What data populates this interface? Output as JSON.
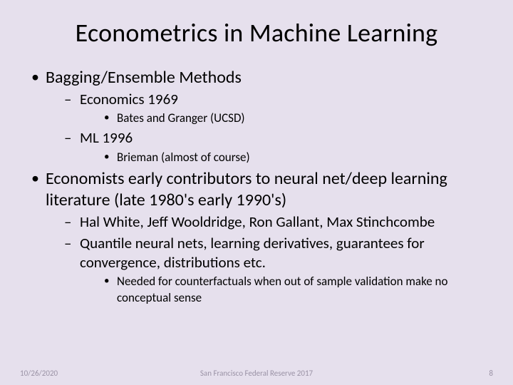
{
  "background_color": "#e6e0ed",
  "text_color": "#000000",
  "footer_color": "#9a92a5",
  "title": "Econometrics in Machine Learning",
  "title_fontsize": 36,
  "bullets": {
    "b1": "Bagging/Ensemble Methods",
    "b1_1": "Economics 1969",
    "b1_1_1": "Bates and Granger (UCSD)",
    "b1_2": "ML 1996",
    "b1_2_1": "Brieman (almost of course)",
    "b2": "Economists early contributors to neural net/deep learning literature (late 1980's early 1990's)",
    "b2_1": "Hal White, Jeff Wooldridge, Ron Gallant, Max Stinchcombe",
    "b2_2": "Quantile neural nets, learning derivatives, guarantees for convergence, distributions etc.",
    "b2_2_1": "Needed for counterfactuals when out of sample validation make no conceptual sense"
  },
  "footer": {
    "date": "10/26/2020",
    "center": "San Francisco Federal Reserve 2017",
    "page": "8"
  },
  "fontsize": {
    "lvl1": 24,
    "lvl2": 21,
    "lvl3": 17,
    "footer": 11
  }
}
